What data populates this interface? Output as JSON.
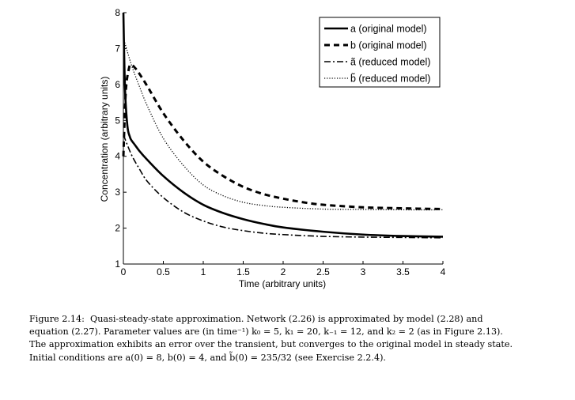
{
  "chart_data": {
    "type": "line",
    "title": "",
    "xlabel": "Time (arbitrary units)",
    "ylabel": "Concentration (arbitrary units)",
    "xlim": [
      0,
      4
    ],
    "ylim": [
      1,
      8
    ],
    "xticks": [
      0,
      0.5,
      1,
      1.5,
      2,
      2.5,
      3,
      3.5,
      4
    ],
    "xtick_labels": [
      "0",
      "0.5",
      "1",
      "1.5",
      "2",
      "2.5",
      "3",
      "3.5",
      "4"
    ],
    "yticks": [
      1,
      2,
      3,
      4,
      5,
      6,
      7,
      8
    ],
    "ytick_labels": [
      "1",
      "2",
      "3",
      "4",
      "5",
      "6",
      "7",
      "8"
    ],
    "grid": false,
    "legend_position": "top-right",
    "series": [
      {
        "name": "a (original model)",
        "style": "solid",
        "x": [
          0,
          0.02,
          0.05,
          0.08,
          0.1,
          0.15,
          0.2,
          0.3,
          0.5,
          0.75,
          1,
          1.25,
          1.5,
          1.75,
          2,
          2.5,
          3,
          3.5,
          4
        ],
        "y": [
          8,
          5.9,
          4.85,
          4.55,
          4.45,
          4.3,
          4.15,
          3.9,
          3.45,
          3.0,
          2.65,
          2.42,
          2.25,
          2.12,
          2.02,
          1.9,
          1.82,
          1.78,
          1.76
        ]
      },
      {
        "name": "b (original model)",
        "style": "dashed",
        "x": [
          0,
          0.03,
          0.07,
          0.1,
          0.15,
          0.2,
          0.3,
          0.5,
          0.75,
          1,
          1.25,
          1.5,
          1.75,
          2,
          2.25,
          2.5,
          3,
          3.5,
          4
        ],
        "y": [
          4.0,
          5.8,
          6.45,
          6.55,
          6.45,
          6.3,
          5.95,
          5.2,
          4.45,
          3.85,
          3.45,
          3.15,
          2.95,
          2.82,
          2.72,
          2.65,
          2.58,
          2.55,
          2.53
        ]
      },
      {
        "name": "ã (reduced model)",
        "style": "dashdot",
        "x": [
          0,
          0.1,
          0.2,
          0.3,
          0.5,
          0.75,
          1,
          1.25,
          1.5,
          1.75,
          2,
          2.5,
          3,
          3.5,
          4
        ],
        "y": [
          4.6,
          4.05,
          3.65,
          3.3,
          2.85,
          2.45,
          2.2,
          2.03,
          1.93,
          1.86,
          1.82,
          1.77,
          1.75,
          1.74,
          1.73
        ]
      },
      {
        "name": "b̃ (reduced model)",
        "style": "dotted",
        "x": [
          0,
          0.1,
          0.2,
          0.3,
          0.5,
          0.75,
          1,
          1.25,
          1.5,
          1.75,
          2,
          2.5,
          3,
          3.5,
          4
        ],
        "y": [
          7.3,
          6.55,
          5.95,
          5.4,
          4.5,
          3.75,
          3.2,
          2.9,
          2.72,
          2.63,
          2.58,
          2.53,
          2.52,
          2.51,
          2.51
        ]
      }
    ]
  },
  "caption": {
    "label": "Figure 2.14:",
    "lines": [
      "Quasi-steady-state approximation.  Network (2.26) is approximated by model (2.28) and",
      "equation (2.27). Parameter values are (in time⁻¹) k₀ = 5, k₁ = 20, k₋₁ = 12, and k₂ = 2 (as in Figure 2.13).",
      "The approximation exhibits an error over the transient, but converges to the original model in steady state.",
      "Initial conditions are a(0) = 8, b(0) = 4, and b̃(0) = 235/32 (see Exercise 2.2.4)."
    ]
  }
}
